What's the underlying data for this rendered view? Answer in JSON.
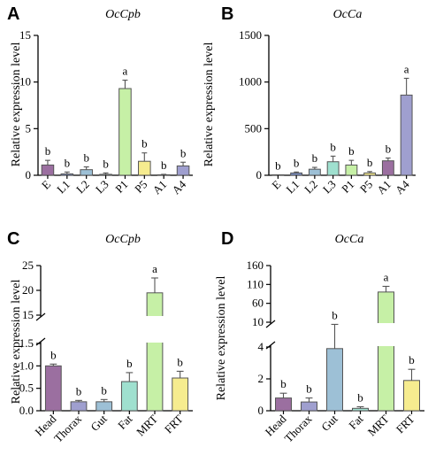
{
  "chart_data": [
    {
      "type": "bar",
      "panel": "A",
      "title": "OcCpb",
      "ylabel": "Relative expression level",
      "categories": [
        "E",
        "L1",
        "L2",
        "L3",
        "P1",
        "P5",
        "A1",
        "A4"
      ],
      "values": [
        1.1,
        0.15,
        0.6,
        0.1,
        9.3,
        1.5,
        0.05,
        1.0
      ],
      "errors": [
        0.5,
        0.2,
        0.3,
        0.15,
        0.9,
        0.9,
        0.05,
        0.4
      ],
      "significance": [
        "b",
        "b",
        "b",
        "b",
        "a",
        "b",
        "b",
        "b"
      ],
      "colors": [
        "#9b6fa0",
        "#7a8fc4",
        "#9dc0d6",
        "#9fe0cf",
        "#c6f0a6",
        "#f6ec8f",
        "#d8d9ed",
        "#9f9fcf"
      ],
      "ylim": [
        0,
        15
      ],
      "yticks": [
        "0",
        "5",
        "10",
        "15"
      ]
    },
    {
      "type": "bar",
      "panel": "B",
      "title": "OcCa",
      "ylabel": "Relative expression level",
      "categories": [
        "E",
        "L1",
        "L2",
        "L3",
        "P1",
        "P5",
        "A1",
        "A4"
      ],
      "values": [
        2,
        25,
        65,
        145,
        110,
        25,
        155,
        860
      ],
      "errors": [
        2,
        10,
        20,
        60,
        50,
        15,
        30,
        180
      ],
      "significance": [
        "b",
        "b",
        "b",
        "b",
        "b",
        "b",
        "b",
        "a"
      ],
      "colors": [
        "#9b6fa0",
        "#7a8fc4",
        "#9dc0d6",
        "#9fe0cf",
        "#c6f0a6",
        "#f6ec8f",
        "#9b6fa0",
        "#9f9fcf"
      ],
      "ylim": [
        0,
        1500
      ],
      "yticks": [
        "0",
        "500",
        "1000",
        "1500"
      ]
    },
    {
      "type": "bar",
      "panel": "C",
      "title": "OcCpb",
      "ylabel": "Relative expression level",
      "categories": [
        "Head",
        "Thorax",
        "Gut",
        "Fat",
        "MRT",
        "FRT"
      ],
      "values": [
        1.0,
        0.2,
        0.2,
        0.65,
        19.5,
        0.73
      ],
      "errors": [
        0.04,
        0.03,
        0.05,
        0.2,
        3.0,
        0.15
      ],
      "significance": [
        "b",
        "b",
        "b",
        "b",
        "a",
        "b"
      ],
      "colors": [
        "#9b6fa0",
        "#9f9fcf",
        "#9dc0d6",
        "#9fe0cf",
        "#c6f0a6",
        "#f6ec8f"
      ],
      "axis_break": {
        "lower": [
          0,
          1.5
        ],
        "upper": [
          15,
          25
        ]
      },
      "yticks_lower": [
        "0.0",
        "0.5",
        "1.0",
        "1.5"
      ],
      "yticks_upper": [
        "15",
        "20",
        "25"
      ]
    },
    {
      "type": "bar",
      "panel": "D",
      "title": "OcCa",
      "ylabel": "Relative expression level",
      "categories": [
        "Head",
        "Thorax",
        "Gut",
        "Fat",
        "MRT",
        "FRT"
      ],
      "values": [
        0.8,
        0.55,
        3.9,
        0.15,
        90,
        1.9
      ],
      "errors": [
        0.3,
        0.25,
        0.4,
        0.1,
        15,
        0.7
      ],
      "significance": [
        "b",
        "b",
        "b",
        "b",
        "a",
        "b"
      ],
      "colors": [
        "#9b6fa0",
        "#9f9fcf",
        "#9dc0d6",
        "#9fe0cf",
        "#c6f0a6",
        "#f6ec8f"
      ],
      "axis_break": {
        "lower": [
          0,
          4
        ],
        "upper": [
          10,
          160
        ]
      },
      "yticks_lower": [
        "0",
        "2",
        "4"
      ],
      "yticks_upper": [
        "10",
        "60",
        "110",
        "160"
      ]
    }
  ],
  "panel_labels": [
    "A",
    "B",
    "C",
    "D"
  ]
}
